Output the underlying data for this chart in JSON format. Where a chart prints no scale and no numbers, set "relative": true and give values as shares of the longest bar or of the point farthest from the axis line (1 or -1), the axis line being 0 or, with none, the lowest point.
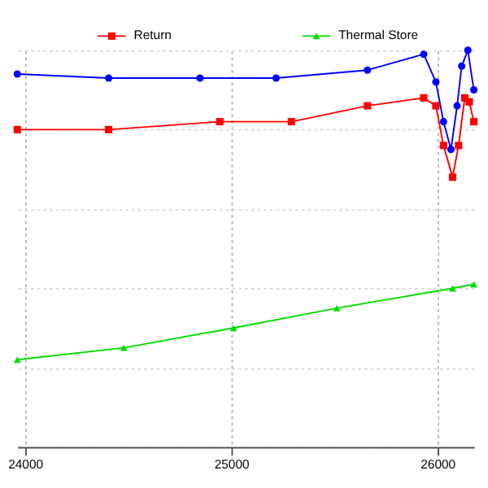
{
  "chart_data": {
    "type": "line",
    "relative": true,
    "xlim": [
      23963,
      26177
    ],
    "xticks": [
      {
        "value": 24000,
        "label": "24000"
      },
      {
        "value": 25000,
        "label": "25000"
      },
      {
        "value": 26000,
        "label": "26000"
      }
    ],
    "grid": true,
    "legend": "top",
    "series": [
      {
        "color": "#0000ff",
        "marker": "circle",
        "x": [
          23963,
          24406,
          24849,
          25218,
          25661,
          25934,
          25993,
          26030,
          26066,
          26096,
          26118,
          26148,
          26177
        ],
        "values": [
          0.94,
          0.93,
          0.93,
          0.93,
          0.95,
          0.99,
          0.92,
          0.82,
          0.75,
          0.86,
          0.96,
          1.0,
          0.9
        ]
      },
      {
        "name": "Return",
        "color": "#ff0000",
        "marker": "square",
        "x": [
          23963,
          24406,
          24945,
          25292,
          25661,
          25934,
          25993,
          26030,
          26074,
          26103,
          26133,
          26155,
          26177
        ],
        "values": [
          0.8,
          0.8,
          0.82,
          0.82,
          0.86,
          0.88,
          0.86,
          0.76,
          0.68,
          0.76,
          0.88,
          0.87,
          0.82
        ]
      },
      {
        "name": "Thermal Store",
        "color": "#00dd00",
        "marker": "triangle",
        "x": [
          23963,
          24480,
          25011,
          25513,
          26074,
          26177
        ],
        "values": [
          0.22,
          0.25,
          0.3,
          0.35,
          0.4,
          0.41
        ]
      }
    ]
  }
}
